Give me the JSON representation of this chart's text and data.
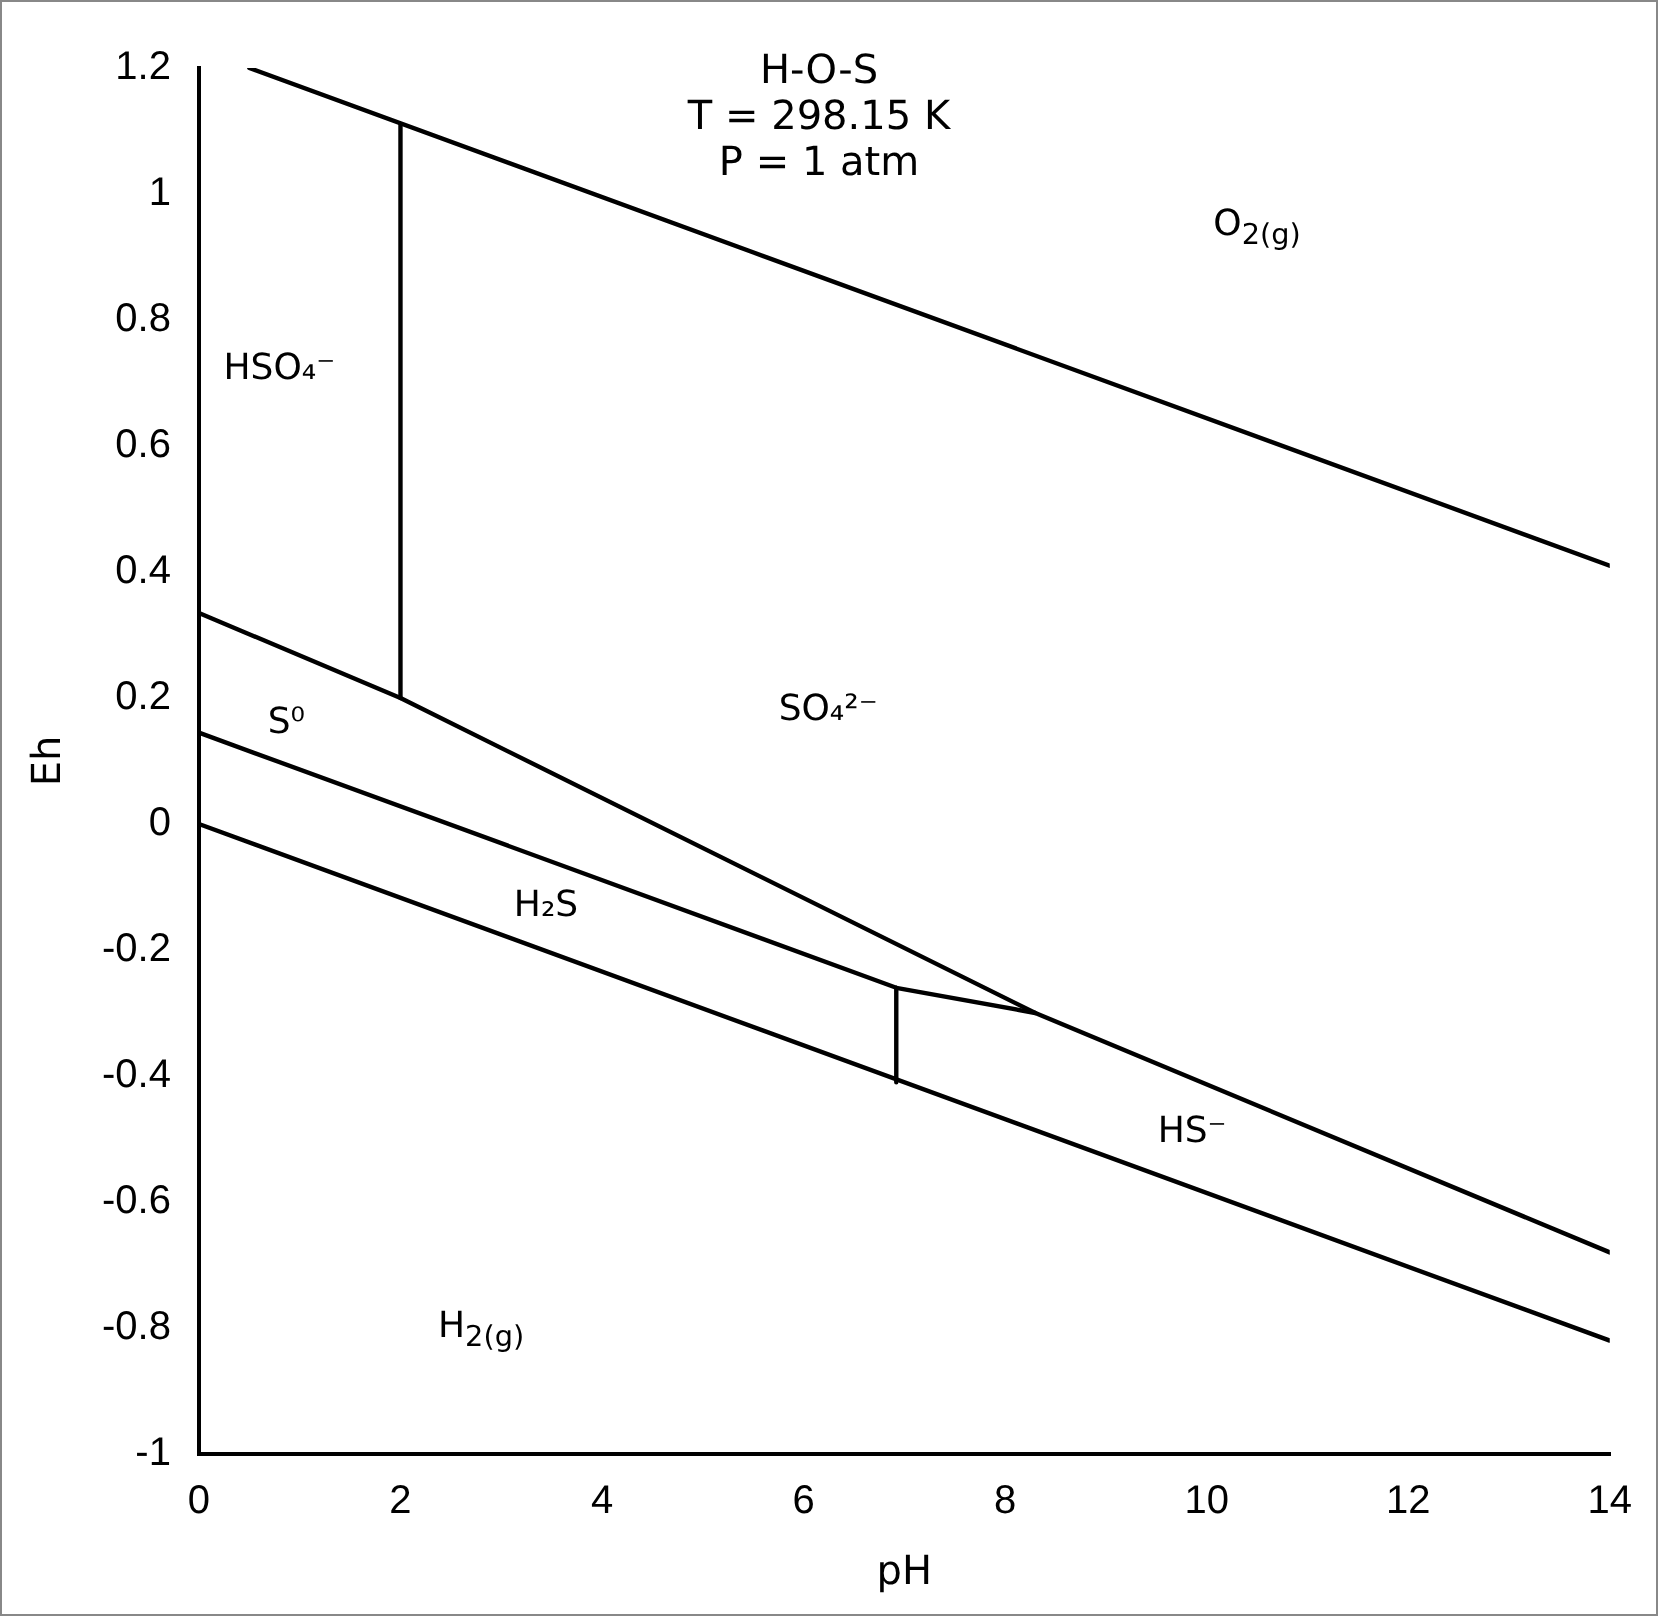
{
  "chart_data": {
    "type": "line",
    "title": "H-O-S\nT = 298.15 K\nP = 1 atm",
    "xlabel": "pH",
    "ylabel": "Eh",
    "xlim": [
      0,
      14
    ],
    "xticks": [
      0,
      2,
      4,
      6,
      8,
      10,
      12,
      14
    ],
    "ylim": [
      -1,
      1.2
    ],
    "yticks": [
      -1,
      -0.8,
      -0.6,
      -0.4,
      -0.2,
      0,
      0.2,
      0.4,
      0.6,
      0.8,
      1,
      1.2
    ],
    "grid": false,
    "legend": false,
    "marker": "none",
    "line_style": "solid",
    "series": [
      {
        "color": "#000000",
        "x": [
          0.5,
          14
        ],
        "values": [
          1.2,
          0.41
        ]
      },
      {
        "color": "#000000",
        "x": [
          0,
          14
        ],
        "values": [
          0,
          -0.82
        ]
      },
      {
        "color": "#000000",
        "x": [
          2,
          2
        ],
        "values": [
          0.2,
          1.11
        ]
      },
      {
        "color": "#000000",
        "x": [
          0,
          2,
          8.3,
          14
        ],
        "values": [
          0.335,
          0.2,
          -0.3,
          -0.68
        ]
      },
      {
        "color": "#000000",
        "x": [
          0,
          6.92,
          8.3
        ],
        "values": [
          0.145,
          -0.26,
          -0.3
        ]
      },
      {
        "color": "#000000",
        "x": [
          6.92,
          6.92
        ],
        "values": [
          -0.26,
          -0.41
        ]
      }
    ],
    "annotations": [
      "O$_{2(g)}$",
      "HSO₄⁻",
      "SO₄²⁻",
      "S⁰",
      "H₂S",
      "HS⁻",
      "H$_{2(g)}$"
    ]
  }
}
